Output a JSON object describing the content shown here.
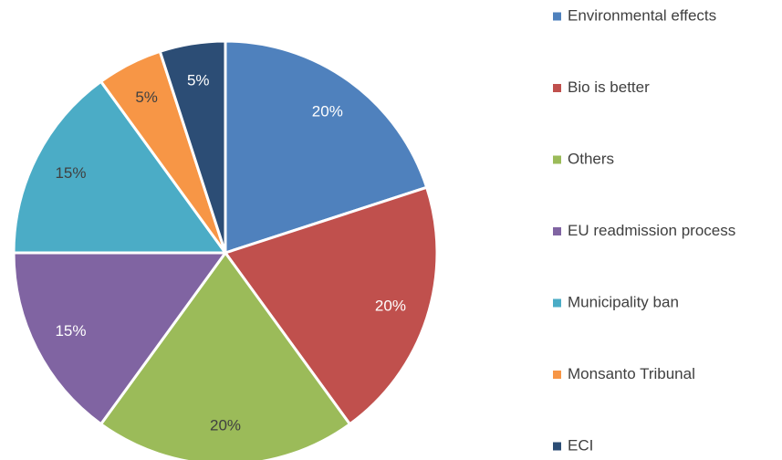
{
  "chart_data": {
    "type": "pie",
    "categories": [
      "Environmental effects",
      "Bio is better",
      "Others",
      "EU readmission process",
      "Municipality ban",
      "Monsanto Tribunal",
      "ECI"
    ],
    "values": [
      20,
      20,
      20,
      15,
      15,
      5,
      5
    ],
    "value_labels": [
      "20%",
      "20%",
      "20%",
      "15%",
      "15%",
      "5%",
      "5%"
    ],
    "colors": [
      "#4f81bd",
      "#c0504d",
      "#9bbb59",
      "#8064a2",
      "#4bacc6",
      "#f79646",
      "#2c4d75"
    ],
    "legend": "right"
  }
}
